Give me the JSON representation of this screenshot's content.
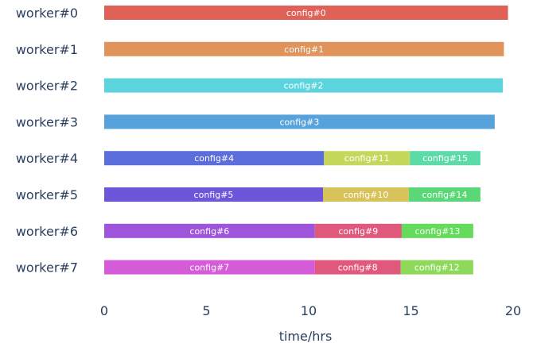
{
  "chart_data": {
    "type": "bar",
    "orientation": "horizontal-gantt",
    "xlabel": "time/hrs",
    "ylabel": "",
    "xlim": [
      0,
      20
    ],
    "xticks": [
      0,
      5,
      10,
      15,
      20
    ],
    "grid": false,
    "legend": "none",
    "categories": [
      "worker#0",
      "worker#1",
      "worker#2",
      "worker#3",
      "worker#4",
      "worker#5",
      "worker#6",
      "worker#7"
    ],
    "tasks": [
      {
        "worker": "worker#0",
        "label": "config#0",
        "start": 0.0,
        "end": 19.75,
        "color": "#e06158"
      },
      {
        "worker": "worker#1",
        "label": "config#1",
        "start": 0.0,
        "end": 19.55,
        "color": "#e0935a"
      },
      {
        "worker": "worker#2",
        "label": "config#2",
        "start": 0.0,
        "end": 19.5,
        "color": "#5bd4dd"
      },
      {
        "worker": "worker#3",
        "label": "config#3",
        "start": 0.0,
        "end": 19.1,
        "color": "#57a2db"
      },
      {
        "worker": "worker#4",
        "label": "config#4",
        "start": 0.0,
        "end": 10.75,
        "color": "#5c6edb"
      },
      {
        "worker": "worker#4",
        "label": "config#11",
        "start": 10.75,
        "end": 14.95,
        "color": "#c7d75c"
      },
      {
        "worker": "worker#4",
        "label": "config#15",
        "start": 14.95,
        "end": 18.4,
        "color": "#5cdba9"
      },
      {
        "worker": "worker#5",
        "label": "config#5",
        "start": 0.0,
        "end": 10.7,
        "color": "#6f55d9"
      },
      {
        "worker": "worker#5",
        "label": "config#10",
        "start": 10.7,
        "end": 14.9,
        "color": "#d8c35a"
      },
      {
        "worker": "worker#5",
        "label": "config#14",
        "start": 14.9,
        "end": 18.4,
        "color": "#5ad877"
      },
      {
        "worker": "worker#6",
        "label": "config#6",
        "start": 0.0,
        "end": 10.3,
        "color": "#9e55dc"
      },
      {
        "worker": "worker#6",
        "label": "config#9",
        "start": 10.3,
        "end": 14.55,
        "color": "#e0597c"
      },
      {
        "worker": "worker#6",
        "label": "config#13",
        "start": 14.55,
        "end": 18.05,
        "color": "#64db5a"
      },
      {
        "worker": "worker#7",
        "label": "config#7",
        "start": 0.0,
        "end": 10.3,
        "color": "#d55bd9"
      },
      {
        "worker": "worker#7",
        "label": "config#8",
        "start": 10.3,
        "end": 14.5,
        "color": "#e0597c"
      },
      {
        "worker": "worker#7",
        "label": "config#12",
        "start": 14.5,
        "end": 18.05,
        "color": "#8ed95a"
      }
    ]
  }
}
